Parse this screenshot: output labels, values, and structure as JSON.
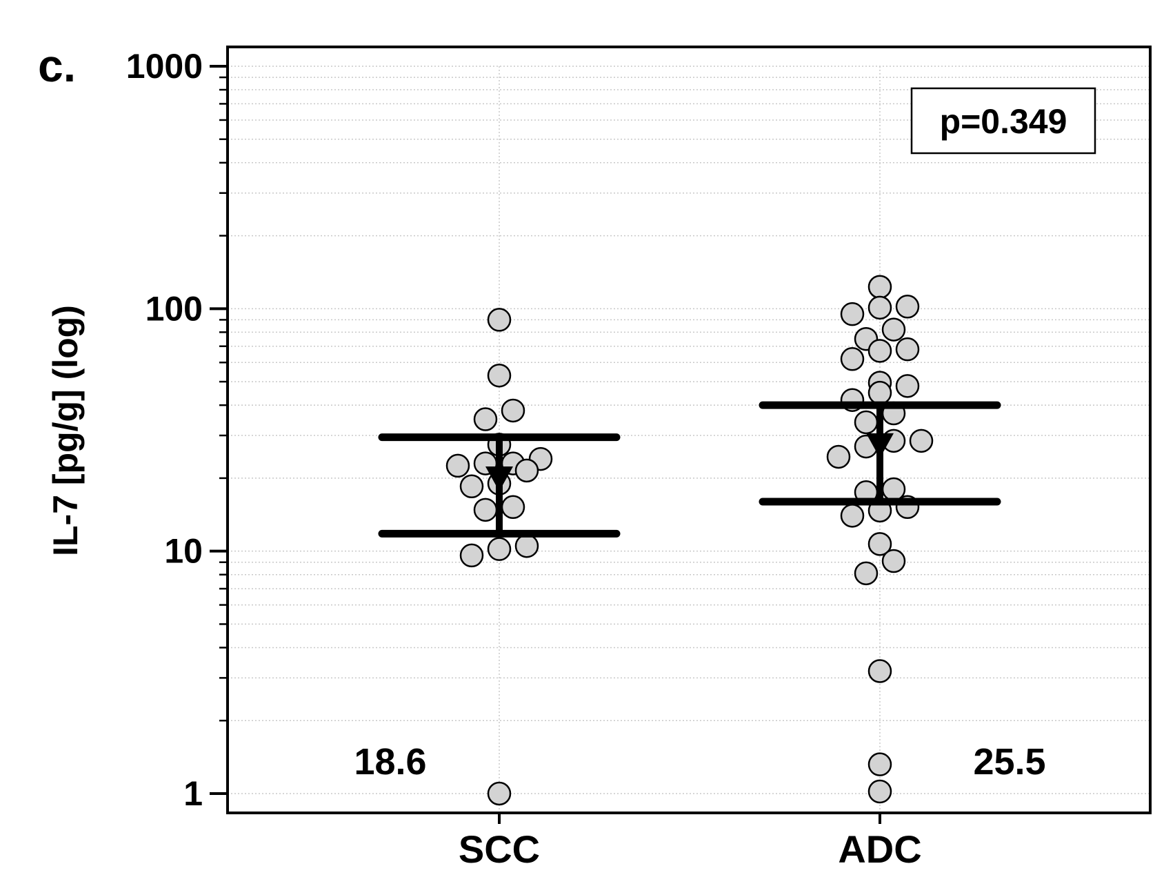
{
  "panel_label": "c.",
  "chart_data": {
    "type": "scatter",
    "subtype": "dot-plot-median-iqr",
    "title": "",
    "xlabel": "",
    "ylabel": "IL-7 [pg/g] (log)",
    "yscale": "log",
    "ylim": [
      0.9,
      1000
    ],
    "y_ticks": [
      {
        "value": 1,
        "label": "1"
      },
      {
        "value": 10,
        "label": "10"
      },
      {
        "value": 100,
        "label": "100"
      },
      {
        "value": 1000,
        "label": "1000"
      }
    ],
    "grid": true,
    "categories": [
      "SCC",
      "ADC"
    ],
    "annotation": "p=0.349",
    "groups": [
      {
        "name": "SCC",
        "median_label": "18.6",
        "median": 18.6,
        "q1": 11.8,
        "q3": 29.5,
        "points": [
          {
            "y": 90,
            "offset": 0
          },
          {
            "y": 53,
            "offset": 0
          },
          {
            "y": 38,
            "offset": 0.5
          },
          {
            "y": 35,
            "offset": -0.5
          },
          {
            "y": 27.5,
            "offset": 0
          },
          {
            "y": 24,
            "offset": 1.5
          },
          {
            "y": 23,
            "offset": -0.5
          },
          {
            "y": 23,
            "offset": 0.5
          },
          {
            "y": 22.5,
            "offset": -1.5
          },
          {
            "y": 21.5,
            "offset": 1
          },
          {
            "y": 19,
            "offset": 0
          },
          {
            "y": 18.5,
            "offset": -1
          },
          {
            "y": 15.2,
            "offset": 0.5
          },
          {
            "y": 14.8,
            "offset": -0.5
          },
          {
            "y": 10.5,
            "offset": 1
          },
          {
            "y": 10.2,
            "offset": 0
          },
          {
            "y": 9.6,
            "offset": -1
          },
          {
            "y": 1.0,
            "offset": 0
          }
        ]
      },
      {
        "name": "ADC",
        "median_label": "25.5",
        "median": 25.5,
        "q1": 16,
        "q3": 40,
        "points": [
          {
            "y": 123,
            "offset": 0
          },
          {
            "y": 102,
            "offset": 1
          },
          {
            "y": 101,
            "offset": 0
          },
          {
            "y": 95,
            "offset": -1
          },
          {
            "y": 82,
            "offset": 0.5
          },
          {
            "y": 75,
            "offset": -0.5
          },
          {
            "y": 68,
            "offset": 1
          },
          {
            "y": 67,
            "offset": 0
          },
          {
            "y": 62,
            "offset": -1
          },
          {
            "y": 49.5,
            "offset": 0
          },
          {
            "y": 48,
            "offset": 1
          },
          {
            "y": 45,
            "offset": 0
          },
          {
            "y": 42,
            "offset": -1
          },
          {
            "y": 37,
            "offset": 0.5
          },
          {
            "y": 34,
            "offset": -0.5
          },
          {
            "y": 28.5,
            "offset": 1.5
          },
          {
            "y": 28.5,
            "offset": 0.5
          },
          {
            "y": 27,
            "offset": -0.5
          },
          {
            "y": 24.5,
            "offset": -1.5
          },
          {
            "y": 18,
            "offset": 0.5
          },
          {
            "y": 17.5,
            "offset": -0.5
          },
          {
            "y": 15.2,
            "offset": 1
          },
          {
            "y": 14.7,
            "offset": 0
          },
          {
            "y": 14,
            "offset": -1
          },
          {
            "y": 10.7,
            "offset": 0
          },
          {
            "y": 9.1,
            "offset": 0.5
          },
          {
            "y": 8.1,
            "offset": -0.5
          },
          {
            "y": 3.2,
            "offset": 0
          },
          {
            "y": 1.32,
            "offset": 0
          },
          {
            "y": 1.02,
            "offset": 0
          }
        ]
      }
    ]
  }
}
